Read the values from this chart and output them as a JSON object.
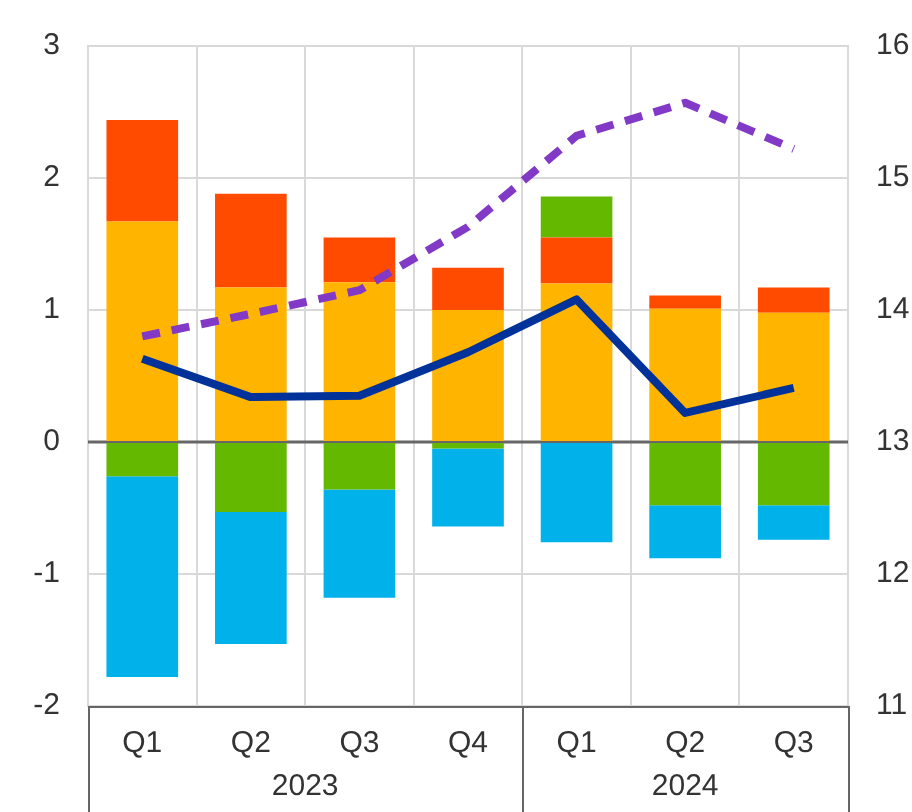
{
  "chart_data": {
    "type": "bar",
    "stacked": true,
    "categories": [
      "Q1",
      "Q2",
      "Q3",
      "Q4",
      "Q1",
      "Q2",
      "Q3"
    ],
    "annotations": [
      "2023",
      "2024"
    ],
    "series": [
      {
        "color": "#ffb400",
        "values": [
          1.67,
          1.17,
          1.21,
          1.0,
          1.2,
          1.01,
          0.98
        ]
      },
      {
        "color": "#ff4b00",
        "values": [
          0.77,
          0.71,
          0.34,
          0.32,
          0.35,
          0.1,
          0.19
        ]
      },
      {
        "color": "#65b800",
        "values": [
          -0.26,
          -0.53,
          -0.36,
          -0.05,
          0.31,
          -0.48,
          -0.48
        ]
      },
      {
        "color": "#00b1ea",
        "values": [
          -1.52,
          -1.0,
          -0.82,
          -0.59,
          -0.76,
          -0.4,
          -0.26
        ]
      },
      {
        "type": "line",
        "color": "#003299",
        "line_style": "solid",
        "values": [
          0.63,
          0.34,
          0.35,
          0.68,
          1.08,
          0.22,
          0.41
        ]
      },
      {
        "type": "line",
        "axis": "y2",
        "color": "#8139c6",
        "line_style": "dashed",
        "values": [
          13.8,
          13.97,
          14.15,
          14.63,
          15.32,
          15.57,
          15.22
        ]
      }
    ],
    "ylim": [
      -2,
      3
    ],
    "yticks": [
      -2,
      -1,
      0,
      1,
      2,
      3
    ],
    "y2lim": [
      11,
      16
    ],
    "y2ticks": [
      11,
      12,
      13,
      14,
      15,
      16
    ],
    "grid": true,
    "legend": false,
    "marker": "none"
  }
}
